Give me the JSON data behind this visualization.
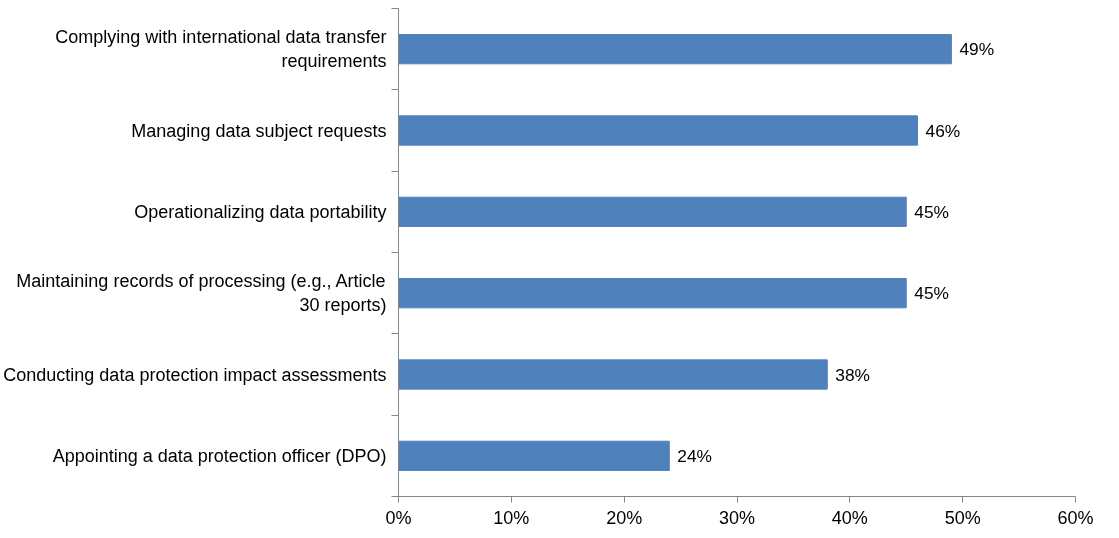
{
  "chart_data": {
    "type": "bar",
    "orientation": "horizontal",
    "categories": [
      "Complying with international data transfer requirements",
      "Managing data subject requests",
      "Operationalizing data portability",
      "Maintaining records of processing (e.g., Article 30 reports)",
      "Conducting data protection impact assessments",
      "Appointing a data protection officer (DPO)"
    ],
    "values": [
      49,
      46,
      45,
      45,
      38,
      24
    ],
    "value_labels": [
      "49%",
      "46%",
      "45%",
      "45%",
      "38%",
      "24%"
    ],
    "color": "#4f81bd",
    "xlim": [
      0,
      60
    ],
    "xticks": [
      {
        "value": 0,
        "label": "0%"
      },
      {
        "value": 10,
        "label": "10%"
      },
      {
        "value": 20,
        "label": "20%"
      },
      {
        "value": 30,
        "label": "30%"
      },
      {
        "value": 40,
        "label": "40%"
      },
      {
        "value": 50,
        "label": "50%"
      },
      {
        "value": 60,
        "label": "60%"
      }
    ],
    "grid": false
  }
}
